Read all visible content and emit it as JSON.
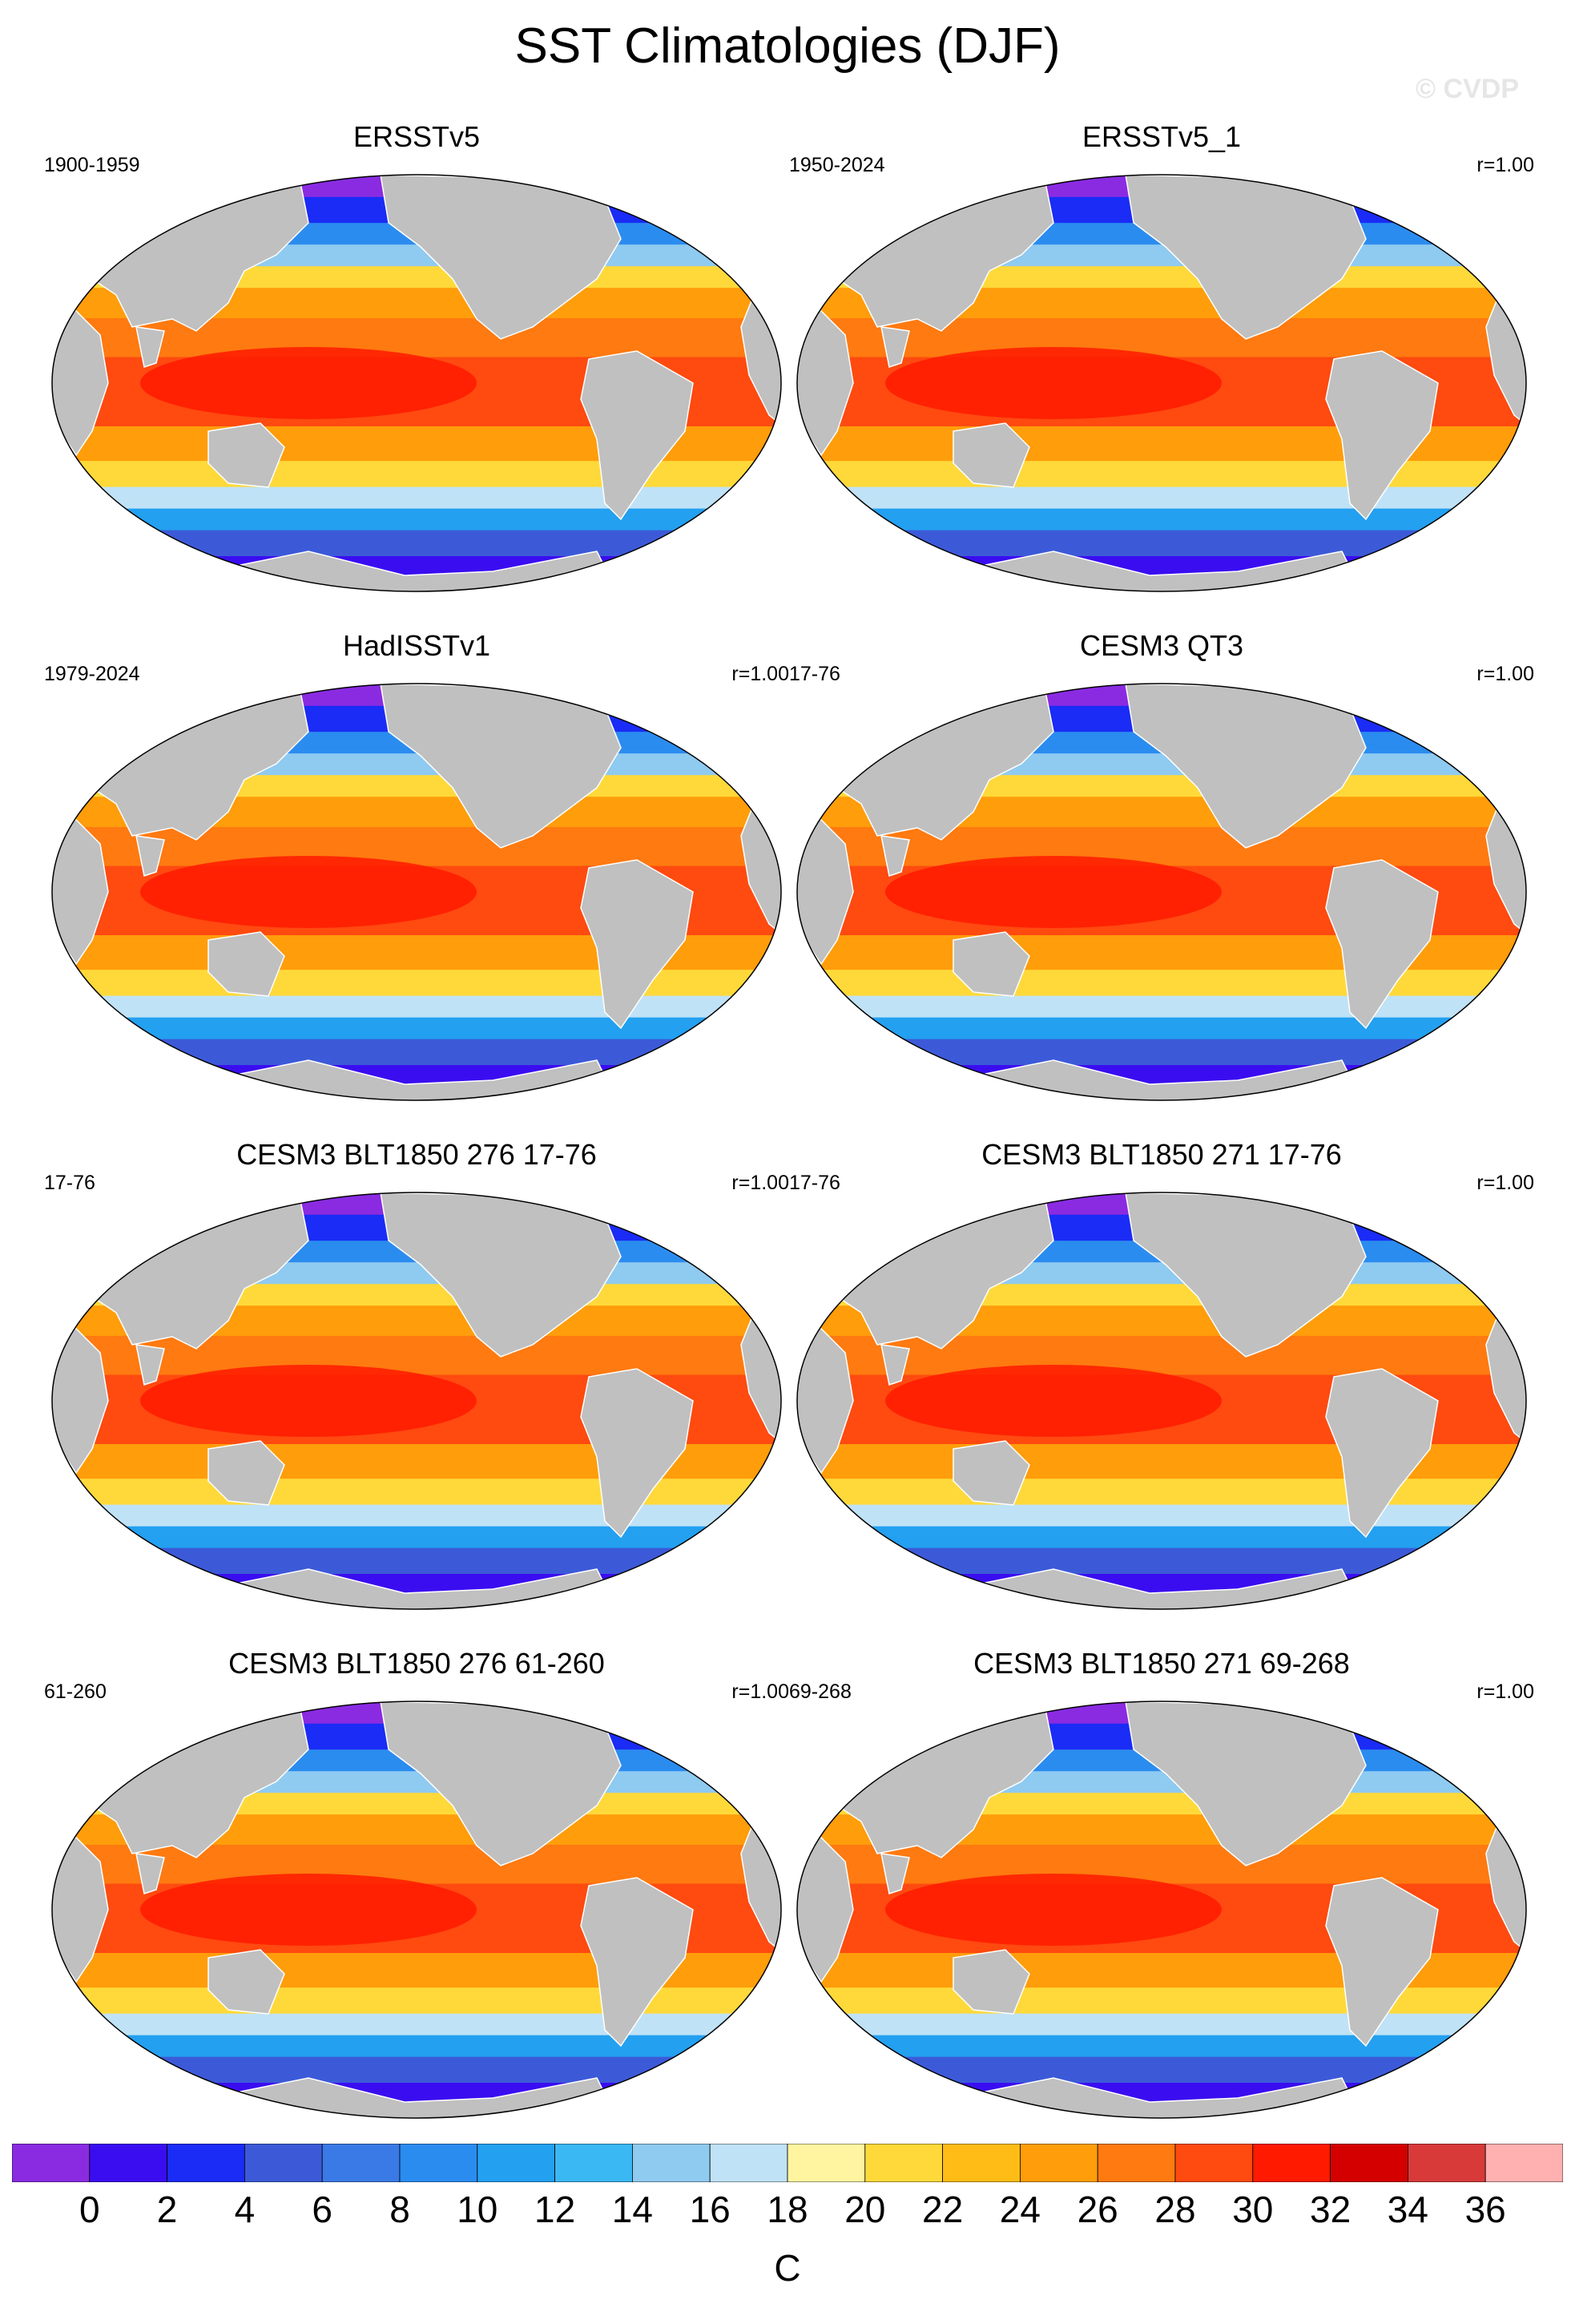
{
  "title": "SST Climatologies (DJF)",
  "watermark": "© CVDP",
  "units": "C",
  "colorbar": {
    "ticks": [
      "0",
      "2",
      "4",
      "6",
      "8",
      "10",
      "12",
      "14",
      "16",
      "18",
      "20",
      "22",
      "24",
      "26",
      "28",
      "30",
      "32",
      "34",
      "36"
    ],
    "colors": [
      "#8a2be2",
      "#3a0df0",
      "#1a2cf5",
      "#3c5ad8",
      "#3a7ae6",
      "#2b8cf0",
      "#23a0f0",
      "#3ab8f3",
      "#8fcaf0",
      "#c0e2f6",
      "#fff4a0",
      "#ffd93a",
      "#ffbc16",
      "#ff9d0a",
      "#ff7a10",
      "#ff4a10",
      "#ff1a00",
      "#d40000",
      "#d83a3a",
      "#ffb0b0"
    ]
  },
  "map_colors": {
    "land": "#c0c0c0",
    "cold": "#8a2be2",
    "warm": "#ff5a10"
  },
  "panels": [
    {
      "title": "ERSSTv5",
      "left_label": "1900-1959",
      "right_label": ""
    },
    {
      "title": "ERSSTv5_1",
      "left_label": "1950-2024",
      "right_label": "r=1.00"
    },
    {
      "title": "HadISSTv1",
      "left_label": "1979-2024",
      "right_label": "r=1.00"
    },
    {
      "title": "CESM3 QT3",
      "left_label": "17-76",
      "right_label": "r=1.00"
    },
    {
      "title": "CESM3 BLT1850 276 17-76",
      "left_label": "17-76",
      "right_label": "r=1.00"
    },
    {
      "title": "CESM3 BLT1850 271 17-76",
      "left_label": "17-76",
      "right_label": "r=1.00"
    },
    {
      "title": "CESM3 BLT1850 276 61-260",
      "left_label": "61-260",
      "right_label": "r=1.00"
    },
    {
      "title": "CESM3 BLT1850 271 69-268",
      "left_label": "69-268",
      "right_label": "r=1.00"
    }
  ]
}
